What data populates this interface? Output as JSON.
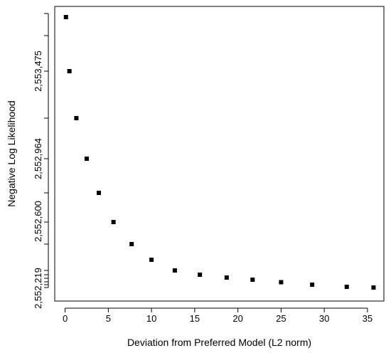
{
  "chart_data": {
    "type": "scatter",
    "title": "",
    "xlabel": "Deviation from Preferred Model (L2 norm)",
    "ylabel": "Negative Log Likelihood",
    "x_ticks": [
      0,
      5,
      10,
      15,
      20,
      25,
      30,
      35
    ],
    "y_tick_labels": [
      "2,552,219",
      "2,552,600",
      "2,552,964",
      "2,553,475"
    ],
    "xlim": [
      -1.2,
      36.9
    ],
    "points": [
      {
        "x": 0.1,
        "y": 2553820
      },
      {
        "x": 0.5,
        "y": 2553440
      },
      {
        "x": 1.3,
        "y": 2553125
      },
      {
        "x": 2.5,
        "y": 2552850
      },
      {
        "x": 3.9,
        "y": 2552620
      },
      {
        "x": 5.6,
        "y": 2552430
      },
      {
        "x": 7.7,
        "y": 2552280
      },
      {
        "x": 10.0,
        "y": 2552170
      },
      {
        "x": 12.7,
        "y": 2552100
      },
      {
        "x": 15.6,
        "y": 2552070
      },
      {
        "x": 18.7,
        "y": 2552050
      },
      {
        "x": 21.7,
        "y": 2552035
      },
      {
        "x": 25.0,
        "y": 2552020
      },
      {
        "x": 28.6,
        "y": 2552005
      },
      {
        "x": 32.6,
        "y": 2551990
      },
      {
        "x": 35.7,
        "y": 2551985
      }
    ],
    "marker": "square",
    "marker_color": "#000000",
    "grid": false,
    "legend": "none"
  }
}
